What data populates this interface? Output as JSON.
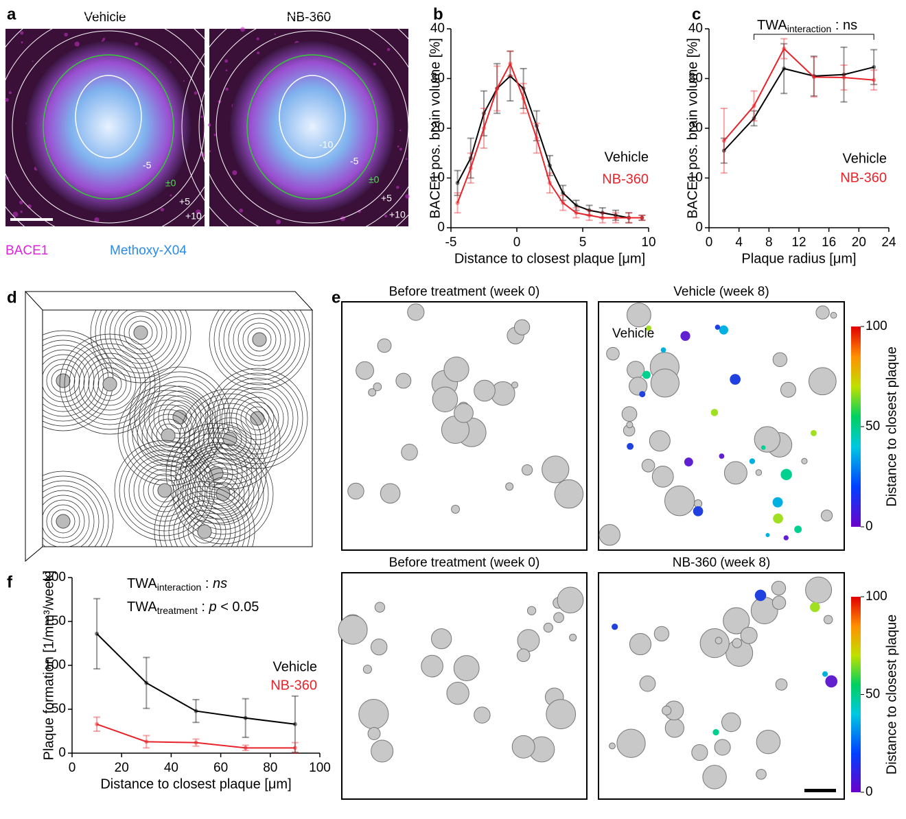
{
  "panel_a": {
    "label": "a",
    "images": [
      {
        "title": "Vehicle",
        "contour_labels": [
          "-5",
          "±0",
          "+5",
          "+10"
        ]
      },
      {
        "title": "NB-360",
        "contour_labels": [
          "-10",
          "-5",
          "±0",
          "+5",
          "+10"
        ]
      }
    ],
    "channels": [
      "BACE1",
      "Methoxy-X04"
    ]
  },
  "panel_d": {
    "label": "d"
  },
  "panel_e": {
    "label": "e",
    "panels": [
      {
        "title": "Before treatment (week 0)"
      },
      {
        "title": "Vehicle (week 8)",
        "inset": "Vehicle"
      },
      {
        "title": "Before treatment (week 0)"
      },
      {
        "title": "NB-360 (week 8)"
      }
    ],
    "colorbar": {
      "label": "Distance to closest plaque",
      "ticks": [
        0,
        50,
        100
      ]
    }
  },
  "chart_data": [
    {
      "type": "line",
      "label": "b",
      "xlabel": "Distance to closest plaque [μm]",
      "ylabel": "BACE1 pos. brain volume [%]",
      "x": [
        -4.5,
        -3.5,
        -2.5,
        -1.5,
        -0.5,
        0.5,
        1.5,
        2.5,
        3.5,
        4.5,
        5.5,
        6.5,
        7.5,
        8.5,
        9.5
      ],
      "xlim": [
        -5,
        10
      ],
      "xticks": [
        -5,
        0,
        5,
        10
      ],
      "ylim": [
        0,
        40
      ],
      "yticks": [
        0,
        10,
        20,
        30,
        40
      ],
      "series": [
        {
          "name": "Vehicle",
          "color": "#000000",
          "values": [
            9,
            14,
            23,
            28,
            30.5,
            28,
            20.5,
            12.5,
            7,
            4.5,
            3.5,
            3,
            2.5,
            2,
            2
          ],
          "errors": [
            2.5,
            4,
            4.5,
            5,
            5,
            4,
            3,
            2,
            1.5,
            1,
            1,
            1,
            1,
            1,
            0.5
          ]
        },
        {
          "name": "NB-360",
          "color": "#e8242a",
          "values": [
            5,
            12,
            20,
            28,
            33,
            26,
            18,
            9,
            5,
            3,
            2.5,
            2,
            2,
            2,
            2
          ],
          "errors": [
            2,
            3,
            4,
            4.5,
            2.5,
            3,
            3,
            2,
            1.5,
            1,
            1,
            1,
            1,
            1,
            0.5
          ]
        }
      ]
    },
    {
      "type": "line",
      "label": "c",
      "xlabel": "Plaque radius [μm]",
      "ylabel": "BACE1 pos. brain volume [%]",
      "annotation": [
        "TWA",
        "interaction",
        " : ns"
      ],
      "x": [
        2,
        6,
        10,
        14,
        18,
        22
      ],
      "xlim": [
        0,
        24
      ],
      "xticks": [
        0,
        4,
        8,
        12,
        16,
        20,
        24
      ],
      "ylim": [
        0,
        40
      ],
      "yticks": [
        0,
        10,
        20,
        30,
        40
      ],
      "series": [
        {
          "name": "Vehicle",
          "color": "#000000",
          "values": [
            15.5,
            22,
            32,
            30.5,
            30.8,
            32.3
          ],
          "errors": [
            2.5,
            1.5,
            5,
            4,
            5.5,
            3.5
          ]
        },
        {
          "name": "NB-360",
          "color": "#e8242a",
          "values": [
            17.5,
            24.5,
            36,
            30.3,
            30.2,
            29.7
          ],
          "errors": [
            6.5,
            3,
            2,
            4,
            2.5,
            2
          ]
        }
      ]
    },
    {
      "type": "line",
      "label": "f",
      "xlabel": "Distance to closest plaque [μm]",
      "ylabel": "Plaque formation [1/mm³/week]",
      "annotations": [
        [
          "TWA",
          "interaction",
          " : ",
          "ns",
          ""
        ],
        [
          "TWA",
          "treatment",
          " : ",
          "p",
          " < 0.05"
        ]
      ],
      "x": [
        10,
        30,
        50,
        70,
        90
      ],
      "xlim": [
        0,
        100
      ],
      "xticks": [
        0,
        20,
        40,
        60,
        80,
        100
      ],
      "ylim": [
        0,
        200
      ],
      "yticks": [
        0,
        50,
        100,
        150,
        200
      ],
      "series": [
        {
          "name": "Vehicle",
          "color": "#000000",
          "values": [
            136,
            80,
            48,
            40,
            33
          ],
          "errors": [
            40,
            29,
            13,
            22,
            32
          ]
        },
        {
          "name": "NB-360",
          "color": "#e8242a",
          "values": [
            33,
            13,
            12,
            6,
            6
          ],
          "errors": [
            8,
            7,
            4,
            3,
            6
          ]
        }
      ]
    }
  ]
}
